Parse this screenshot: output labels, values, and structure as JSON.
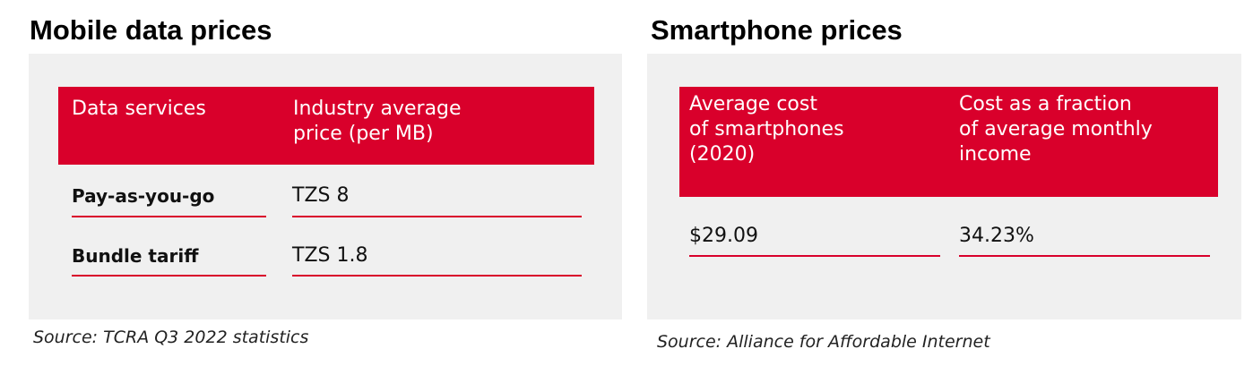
{
  "left": {
    "title": "Mobile data prices",
    "headers": [
      "Data services",
      "Industry average\nprice (per MB)"
    ],
    "rows": [
      {
        "label": "Pay-as-you-go",
        "value": "TZS 8"
      },
      {
        "label": "Bundle tariff",
        "value": "TZS 1.8"
      }
    ],
    "source": "Source: TCRA Q3 2022 statistics"
  },
  "right": {
    "title": "Smartphone prices",
    "headers": [
      "Average cost\nof smartphones\n(2020)",
      "Cost as a fraction\nof average monthly\nincome"
    ],
    "row": {
      "cost": "$29.09",
      "fraction": "34.23%"
    },
    "source": "Source: Alliance for Affordable Internet"
  },
  "colors": {
    "accent": "#d9002b",
    "panel": "#f0f0f0"
  }
}
